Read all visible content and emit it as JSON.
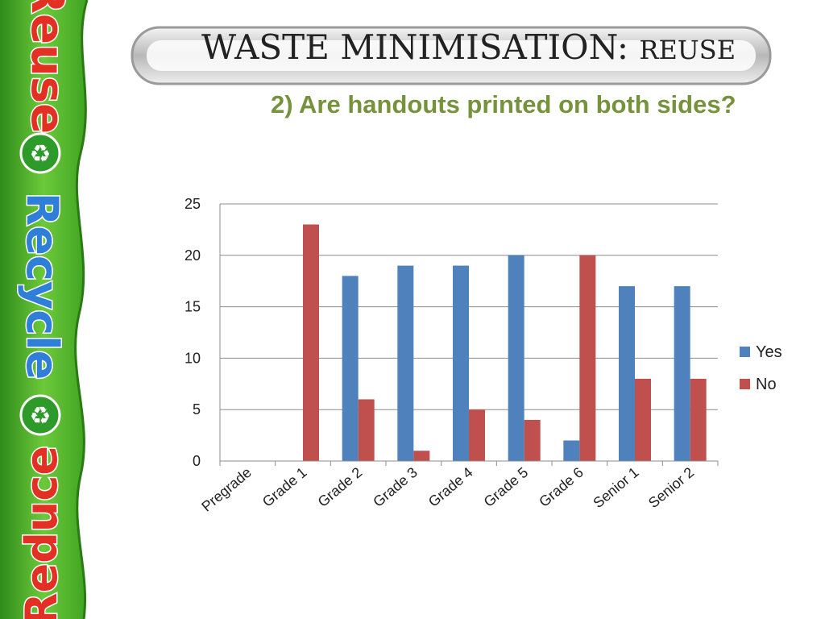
{
  "slide": {
    "title_main": "WASTE MINIMISATION: ",
    "title_small": "REUSE",
    "subtitle": "2) Are handouts printed on both sides?",
    "banner_words": [
      "Reuse",
      "Recycle",
      "Reduce"
    ]
  },
  "colors": {
    "yes": "#4f81bd",
    "no": "#c0504d",
    "subtitle": "#76923c",
    "banner_green": "#5cb82e"
  },
  "chart_data": {
    "type": "bar",
    "categories": [
      "Pregrade",
      "Grade 1",
      "Grade 2",
      "Grade 3",
      "Grade 4",
      "Grade 5",
      "Grade 6",
      "Senior 1",
      "Senior 2"
    ],
    "series": [
      {
        "name": "Yes",
        "values": [
          0,
          0,
          18,
          19,
          19,
          20,
          2,
          17,
          17
        ]
      },
      {
        "name": "No",
        "values": [
          0,
          23,
          6,
          1,
          5,
          4,
          20,
          8,
          8
        ]
      }
    ],
    "ylim": [
      0,
      25
    ],
    "yticks": [
      0,
      5,
      10,
      15,
      20,
      25
    ],
    "grid": true,
    "legend_position": "right",
    "title": "",
    "xlabel": "",
    "ylabel": ""
  }
}
